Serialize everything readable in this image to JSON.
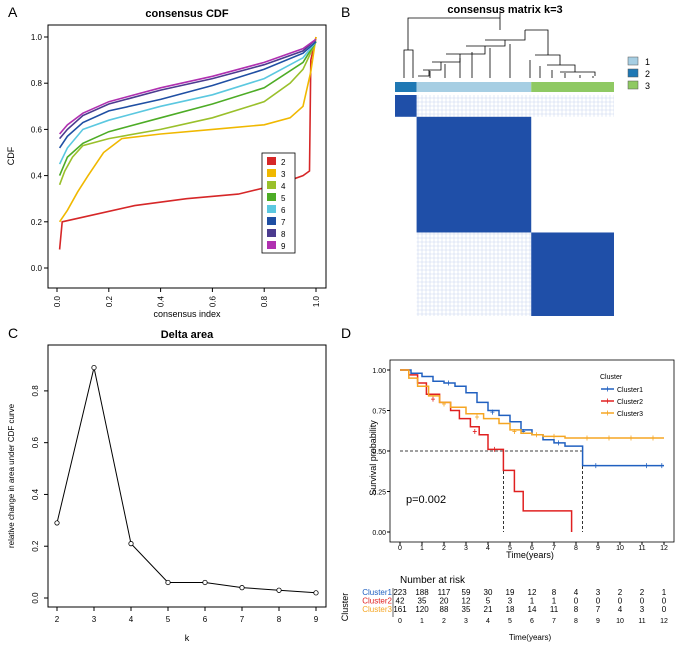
{
  "chart_data": [
    {
      "panel": "A",
      "type": "line",
      "title": "consensus CDF",
      "xlabel": "consensus index",
      "ylabel": "CDF",
      "xlim": [
        0,
        1
      ],
      "ylim": [
        0,
        1
      ],
      "x_ticks": [
        "0.0",
        "0.2",
        "0.4",
        "0.6",
        "0.8",
        "1.0"
      ],
      "y_ticks": [
        "0.0",
        "0.2",
        "0.4",
        "0.6",
        "0.8",
        "1.0"
      ],
      "legend_position": "bottom-right",
      "series": [
        {
          "name": "2",
          "color": "#d62728",
          "points": [
            [
              0.01,
              0.08
            ],
            [
              0.02,
              0.2
            ],
            [
              0.1,
              0.22
            ],
            [
              0.3,
              0.27
            ],
            [
              0.5,
              0.3
            ],
            [
              0.7,
              0.32
            ],
            [
              0.85,
              0.36
            ],
            [
              0.95,
              0.4
            ],
            [
              0.975,
              0.42
            ],
            [
              0.98,
              0.9
            ],
            [
              1.0,
              1.0
            ]
          ]
        },
        {
          "name": "3",
          "color": "#f0b800",
          "points": [
            [
              0.01,
              0.2
            ],
            [
              0.04,
              0.25
            ],
            [
              0.08,
              0.33
            ],
            [
              0.12,
              0.4
            ],
            [
              0.18,
              0.5
            ],
            [
              0.25,
              0.56
            ],
            [
              0.4,
              0.58
            ],
            [
              0.6,
              0.6
            ],
            [
              0.8,
              0.62
            ],
            [
              0.9,
              0.65
            ],
            [
              0.95,
              0.7
            ],
            [
              0.98,
              0.85
            ],
            [
              1.0,
              1.0
            ]
          ]
        },
        {
          "name": "4",
          "color": "#9ac02b",
          "points": [
            [
              0.01,
              0.36
            ],
            [
              0.03,
              0.42
            ],
            [
              0.06,
              0.48
            ],
            [
              0.1,
              0.53
            ],
            [
              0.2,
              0.56
            ],
            [
              0.4,
              0.6
            ],
            [
              0.6,
              0.65
            ],
            [
              0.8,
              0.72
            ],
            [
              0.9,
              0.8
            ],
            [
              0.95,
              0.86
            ],
            [
              1.0,
              0.98
            ]
          ]
        },
        {
          "name": "5",
          "color": "#4dac26",
          "points": [
            [
              0.01,
              0.4
            ],
            [
              0.04,
              0.48
            ],
            [
              0.1,
              0.54
            ],
            [
              0.2,
              0.59
            ],
            [
              0.4,
              0.65
            ],
            [
              0.6,
              0.71
            ],
            [
              0.8,
              0.78
            ],
            [
              0.95,
              0.89
            ],
            [
              1.0,
              0.98
            ]
          ]
        },
        {
          "name": "6",
          "color": "#5bc8e0",
          "points": [
            [
              0.01,
              0.45
            ],
            [
              0.04,
              0.52
            ],
            [
              0.1,
              0.6
            ],
            [
              0.2,
              0.64
            ],
            [
              0.4,
              0.7
            ],
            [
              0.6,
              0.75
            ],
            [
              0.8,
              0.82
            ],
            [
              0.95,
              0.91
            ],
            [
              1.0,
              0.98
            ]
          ]
        },
        {
          "name": "7",
          "color": "#1f4fa3",
          "points": [
            [
              0.01,
              0.52
            ],
            [
              0.04,
              0.57
            ],
            [
              0.1,
              0.63
            ],
            [
              0.2,
              0.68
            ],
            [
              0.4,
              0.73
            ],
            [
              0.6,
              0.79
            ],
            [
              0.8,
              0.86
            ],
            [
              0.95,
              0.93
            ],
            [
              1.0,
              0.98
            ]
          ]
        },
        {
          "name": "8",
          "color": "#4b3b8f",
          "points": [
            [
              0.01,
              0.56
            ],
            [
              0.04,
              0.6
            ],
            [
              0.1,
              0.66
            ],
            [
              0.2,
              0.71
            ],
            [
              0.4,
              0.77
            ],
            [
              0.6,
              0.82
            ],
            [
              0.8,
              0.88
            ],
            [
              0.95,
              0.94
            ],
            [
              1.0,
              0.99
            ]
          ]
        },
        {
          "name": "9",
          "color": "#b030b0",
          "points": [
            [
              0.01,
              0.58
            ],
            [
              0.04,
              0.62
            ],
            [
              0.1,
              0.67
            ],
            [
              0.2,
              0.72
            ],
            [
              0.4,
              0.78
            ],
            [
              0.6,
              0.83
            ],
            [
              0.8,
              0.89
            ],
            [
              0.95,
              0.95
            ],
            [
              1.0,
              0.99
            ]
          ]
        }
      ]
    },
    {
      "panel": "B",
      "type": "heatmap",
      "title": "consensus matrix k=3",
      "legend": [
        {
          "label": "1",
          "color": "#a6cee3"
        },
        {
          "label": "2",
          "color": "#1f78b4"
        },
        {
          "label": "3",
          "color": "#8fc963"
        }
      ],
      "cluster_order": [
        "2",
        "1",
        "3"
      ],
      "cluster_sizes": [
        42,
        223,
        161
      ],
      "fill_color": "#1f4fa8"
    },
    {
      "panel": "C",
      "type": "line",
      "title": "Delta area",
      "xlabel": "k",
      "ylabel": "relative change in area under CDF curve",
      "x": [
        2,
        3,
        4,
        5,
        6,
        7,
        8,
        9
      ],
      "values": [
        0.29,
        0.89,
        0.21,
        0.06,
        0.06,
        0.04,
        0.03,
        0.02
      ],
      "xlim": [
        2,
        9
      ],
      "ylim": [
        0,
        0.9
      ],
      "x_ticks": [
        "2",
        "3",
        "4",
        "5",
        "6",
        "7",
        "8",
        "9"
      ],
      "y_ticks": [
        "0.0",
        "0.2",
        "0.4",
        "0.6",
        "0.8"
      ]
    },
    {
      "panel": "D",
      "type": "line",
      "subtype": "kaplan-meier",
      "xlabel": "Time(years)",
      "ylabel": "Survival probability",
      "xlim": [
        0,
        12
      ],
      "ylim": [
        0,
        1
      ],
      "x_ticks": [
        "0",
        "1",
        "2",
        "3",
        "4",
        "5",
        "6",
        "7",
        "8",
        "9",
        "10",
        "11",
        "12"
      ],
      "y_ticks": [
        "0.00",
        "0.25",
        "0.50",
        "0.75",
        "1.00"
      ],
      "pvalue": "p=0.002",
      "legend_title": "Cluster",
      "median_lines": [
        {
          "x": 4.7
        },
        {
          "x": 8.3
        }
      ],
      "series": [
        {
          "name": "Cluster1",
          "color": "#2060c0",
          "steps": [
            [
              0,
              1.0
            ],
            [
              0.5,
              0.98
            ],
            [
              1,
              0.96
            ],
            [
              1.5,
              0.93
            ],
            [
              2,
              0.92
            ],
            [
              2.5,
              0.9
            ],
            [
              3,
              0.86
            ],
            [
              3.5,
              0.8
            ],
            [
              4,
              0.75
            ],
            [
              4.5,
              0.72
            ],
            [
              5,
              0.68
            ],
            [
              5.5,
              0.63
            ],
            [
              6,
              0.6
            ],
            [
              6.5,
              0.57
            ],
            [
              7,
              0.55
            ],
            [
              7.5,
              0.53
            ],
            [
              8.3,
              0.41
            ],
            [
              12,
              0.41
            ]
          ],
          "censored": [
            [
              2.2,
              0.92
            ],
            [
              4.2,
              0.74
            ],
            [
              5.6,
              0.62
            ],
            [
              7.2,
              0.55
            ],
            [
              8.9,
              0.41
            ],
            [
              11.2,
              0.41
            ],
            [
              11.9,
              0.41
            ]
          ]
        },
        {
          "name": "Cluster2",
          "color": "#e02020",
          "steps": [
            [
              0,
              1.0
            ],
            [
              0.4,
              0.97
            ],
            [
              0.8,
              0.92
            ],
            [
              1.2,
              0.85
            ],
            [
              1.8,
              0.8
            ],
            [
              2.3,
              0.75
            ],
            [
              2.7,
              0.7
            ],
            [
              3.2,
              0.65
            ],
            [
              3.6,
              0.6
            ],
            [
              4,
              0.51
            ],
            [
              4.7,
              0.38
            ],
            [
              5.2,
              0.25
            ],
            [
              5.6,
              0.13
            ],
            [
              7.8,
              0.0
            ]
          ],
          "censored": [
            [
              1.5,
              0.82
            ],
            [
              3.4,
              0.62
            ],
            [
              4.3,
              0.51
            ]
          ]
        },
        {
          "name": "Cluster3",
          "color": "#f5a623",
          "steps": [
            [
              0,
              1.0
            ],
            [
              0.4,
              0.95
            ],
            [
              0.8,
              0.9
            ],
            [
              1.3,
              0.84
            ],
            [
              1.8,
              0.8
            ],
            [
              2.3,
              0.77
            ],
            [
              3,
              0.73
            ],
            [
              3.8,
              0.7
            ],
            [
              4.5,
              0.67
            ],
            [
              5,
              0.63
            ],
            [
              5.5,
              0.61
            ],
            [
              6,
              0.6
            ],
            [
              6.5,
              0.59
            ],
            [
              7.5,
              0.58
            ],
            [
              12,
              0.58
            ]
          ],
          "censored": [
            [
              2,
              0.79
            ],
            [
              3.5,
              0.71
            ],
            [
              5.2,
              0.62
            ],
            [
              6.2,
              0.6
            ],
            [
              7,
              0.59
            ],
            [
              8.5,
              0.58
            ],
            [
              9.5,
              0.58
            ],
            [
              10.5,
              0.58
            ],
            [
              11.5,
              0.58
            ]
          ]
        }
      ],
      "risk_table": {
        "title": "Number at risk",
        "ylabel": "Cluster",
        "xlabel": "Time(years)",
        "rows": [
          {
            "name": "Cluster1",
            "color": "#2060c0",
            "values": [
              "223",
              "188",
              "117",
              "59",
              "30",
              "19",
              "12",
              "8",
              "4",
              "3",
              "2",
              "2",
              "1"
            ]
          },
          {
            "name": "Cluster2",
            "color": "#e02020",
            "values": [
              "42",
              "35",
              "20",
              "12",
              "5",
              "3",
              "1",
              "1",
              "0",
              "0",
              "0",
              "0",
              "0"
            ]
          },
          {
            "name": "Cluster3",
            "color": "#f5a623",
            "values": [
              "161",
              "120",
              "88",
              "35",
              "21",
              "18",
              "14",
              "11",
              "8",
              "7",
              "4",
              "3",
              "0"
            ]
          }
        ]
      }
    }
  ],
  "panel_labels": [
    "A",
    "B",
    "C",
    "D"
  ]
}
